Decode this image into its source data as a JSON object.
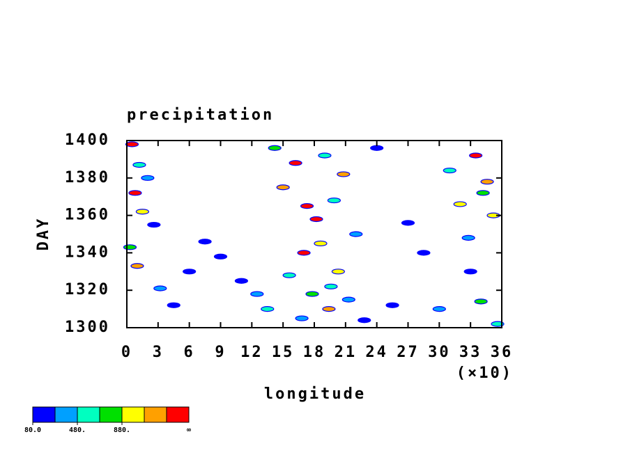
{
  "chart_data": {
    "type": "contour",
    "title": "precipitation",
    "y_label": "DAY",
    "x_label": "longitude",
    "x_scale_label": "(×10)",
    "xlim": [
      0,
      36
    ],
    "ylim": [
      1300,
      1400
    ],
    "xticks": [
      0,
      3,
      6,
      9,
      12,
      15,
      18,
      21,
      24,
      27,
      30,
      33,
      36
    ],
    "yticks": [
      1300,
      1320,
      1340,
      1360,
      1380,
      1400
    ],
    "x": [
      0.5,
      1.2,
      2.0,
      0.8,
      1.5,
      2.6,
      0.3,
      1.0,
      3.2,
      4.5,
      6.0,
      7.5,
      9.0,
      11.0,
      12.5,
      13.5,
      14.2,
      15.0,
      15.6,
      16.2,
      16.8,
      17.3,
      17.8,
      18.2,
      18.6,
      19.0,
      19.4,
      19.9,
      20.3,
      20.8,
      21.3,
      22.0,
      22.8,
      24.0,
      25.5,
      27.0,
      28.5,
      30.0,
      31.0,
      32.0,
      32.8,
      33.5,
      34.0,
      34.6,
      35.2,
      35.6,
      33.0,
      34.2,
      17.0,
      19.6
    ],
    "y": [
      1398,
      1387,
      1380,
      1372,
      1362,
      1355,
      1343,
      1333,
      1321,
      1312,
      1330,
      1346,
      1338,
      1325,
      1318,
      1310,
      1396,
      1375,
      1328,
      1388,
      1305,
      1365,
      1318,
      1358,
      1345,
      1392,
      1310,
      1368,
      1330,
      1382,
      1315,
      1350,
      1304,
      1396,
      1312,
      1356,
      1340,
      1310,
      1384,
      1366,
      1348,
      1392,
      1314,
      1378,
      1360,
      1302,
      1330,
      1372,
      1340,
      1322
    ],
    "values": [
      1400,
      600,
      300,
      1300,
      900,
      200,
      700,
      1200,
      400,
      150,
      100,
      120,
      100,
      180,
      300,
      500,
      800,
      1100,
      600,
      1350,
      400,
      1450,
      700,
      1300,
      950,
      500,
      1250,
      650,
      880,
      1150,
      300,
      450,
      200,
      100,
      150,
      120,
      100,
      300,
      600,
      900,
      350,
      1400,
      700,
      1250,
      1000,
      500,
      250,
      800,
      1320,
      560
    ],
    "colorbar": {
      "colors": [
        "#0000ff",
        "#00a0ff",
        "#00ffc0",
        "#00e000",
        "#ffff00",
        "#ffa000",
        "#ff0000"
      ],
      "levels": [
        80,
        280,
        480,
        680,
        880,
        1080,
        1280
      ],
      "ticks": [
        {
          "value": 80,
          "label": "80.0"
        },
        {
          "value": 480,
          "label": "480."
        },
        {
          "value": 880,
          "label": "880."
        }
      ],
      "top_label": "∞"
    }
  }
}
